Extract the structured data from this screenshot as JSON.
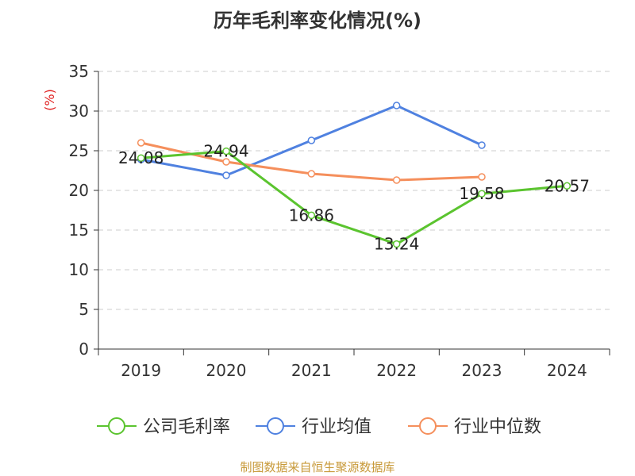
{
  "chart_data": {
    "type": "line",
    "title": "历年毛利率变化情况(%)",
    "y_unit_label": "(%)",
    "categories": [
      "2019",
      "2020",
      "2021",
      "2022",
      "2023",
      "2024"
    ],
    "y_ticks": [
      "0",
      "5",
      "10",
      "15",
      "20",
      "25",
      "30",
      "35"
    ],
    "ylim": [
      0,
      35
    ],
    "grid": true,
    "legend_position": "bottom",
    "series": [
      {
        "name": "公司毛利率",
        "color": "#5bc42f",
        "values": [
          24.08,
          24.94,
          16.86,
          13.24,
          19.58,
          20.57
        ],
        "labels": [
          "24.08",
          "24.94",
          "16.86",
          "13.24",
          "19.58",
          "20.57"
        ]
      },
      {
        "name": "行业均值",
        "color": "#4f81e0",
        "values": [
          23.9,
          21.9,
          26.3,
          30.7,
          25.7,
          null
        ]
      },
      {
        "name": "行业中位数",
        "color": "#f58f5c",
        "values": [
          26.0,
          23.6,
          22.1,
          21.3,
          21.7,
          null
        ]
      }
    ]
  },
  "footer": {
    "source_text": "制图数据来自恒生聚源数据库",
    "source_color": "#c89a3a"
  },
  "colors": {
    "axis": "#333333",
    "grid": "#cccccc",
    "y_unit": "#e02020"
  }
}
